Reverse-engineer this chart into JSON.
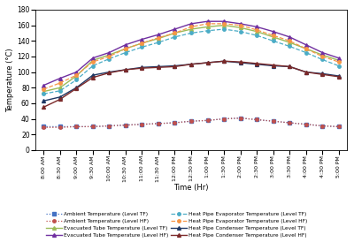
{
  "time_labels": [
    "8:00 AM",
    "8:30 AM",
    "9:00 AM",
    "9:30 AM",
    "10:00 AM",
    "10:30 AM",
    "11:00 AM",
    "11:30 AM",
    "12:00 PM",
    "12:30 PM",
    "1:00 PM",
    "1:30 PM",
    "2:00 PM",
    "2:30 PM",
    "3:00 PM",
    "3:30 PM",
    "4:00 PM",
    "4:30 PM",
    "5:00 PM"
  ],
  "ambient_TF": [
    30,
    30,
    30,
    30,
    31,
    32,
    33,
    34,
    35,
    37,
    38,
    40,
    41,
    39,
    37,
    35,
    33,
    31,
    30
  ],
  "ambient_HF": [
    29,
    29,
    30,
    30,
    31,
    32,
    33,
    34,
    35,
    37,
    38,
    40,
    41,
    39,
    37,
    35,
    33,
    31,
    30
  ],
  "evac_tube_TF": [
    75,
    80,
    95,
    115,
    122,
    130,
    137,
    143,
    150,
    155,
    158,
    160,
    157,
    152,
    145,
    138,
    130,
    122,
    115
  ],
  "evac_tube_HF": [
    83,
    92,
    100,
    118,
    125,
    135,
    142,
    148,
    155,
    162,
    165,
    165,
    162,
    158,
    152,
    145,
    135,
    125,
    118
  ],
  "hp_evap_TF": [
    72,
    76,
    90,
    108,
    117,
    125,
    132,
    138,
    145,
    150,
    153,
    155,
    152,
    147,
    140,
    133,
    125,
    116,
    108
  ],
  "hp_evap_HF": [
    78,
    86,
    96,
    113,
    120,
    130,
    137,
    144,
    150,
    158,
    162,
    162,
    160,
    154,
    147,
    140,
    130,
    120,
    113
  ],
  "hp_cond_TF": [
    63,
    68,
    80,
    96,
    100,
    103,
    106,
    107,
    108,
    110,
    112,
    114,
    112,
    110,
    108,
    107,
    100,
    98,
    95
  ],
  "hp_cond_HF": [
    55,
    65,
    79,
    93,
    99,
    103,
    105,
    106,
    107,
    110,
    112,
    114,
    113,
    111,
    109,
    107,
    100,
    97,
    94
  ],
  "ylim": [
    0,
    180
  ],
  "yticks": [
    0,
    20,
    40,
    60,
    80,
    100,
    120,
    140,
    160,
    180
  ],
  "ylabel": "Temperature (°C)",
  "xlabel": "Time (Hr)",
  "colors": {
    "ambient_TF": "#4472c4",
    "ambient_HF": "#c0504d",
    "evac_tube_TF": "#9bbb59",
    "evac_tube_HF": "#7030a0",
    "hp_evap_TF": "#4bacc6",
    "hp_evap_HF": "#f79646",
    "hp_cond_TF": "#1f3864",
    "hp_cond_HF": "#7b2929"
  },
  "legend_labels": {
    "ambient_TF": "Ambient Temperature (Level TF)",
    "ambient_HF": "Ambient Temperature (Level HF)",
    "evac_tube_TF": "Evacuated Tube Temperature (Level TF)",
    "evac_tube_HF": "Evacuated Tube Temperature (Level HF)",
    "hp_evap_TF": "Heat Pipe Evaporator Temperature (Level TF)",
    "hp_evap_HF": "Heat Pipe Evaporator Temperature (Level HF)",
    "hp_cond_TF": "Heat Pipe Condenser Temperature (Level TF)",
    "hp_cond_HF": "Heat Pipe Condenser Temperature (Level HF)"
  }
}
